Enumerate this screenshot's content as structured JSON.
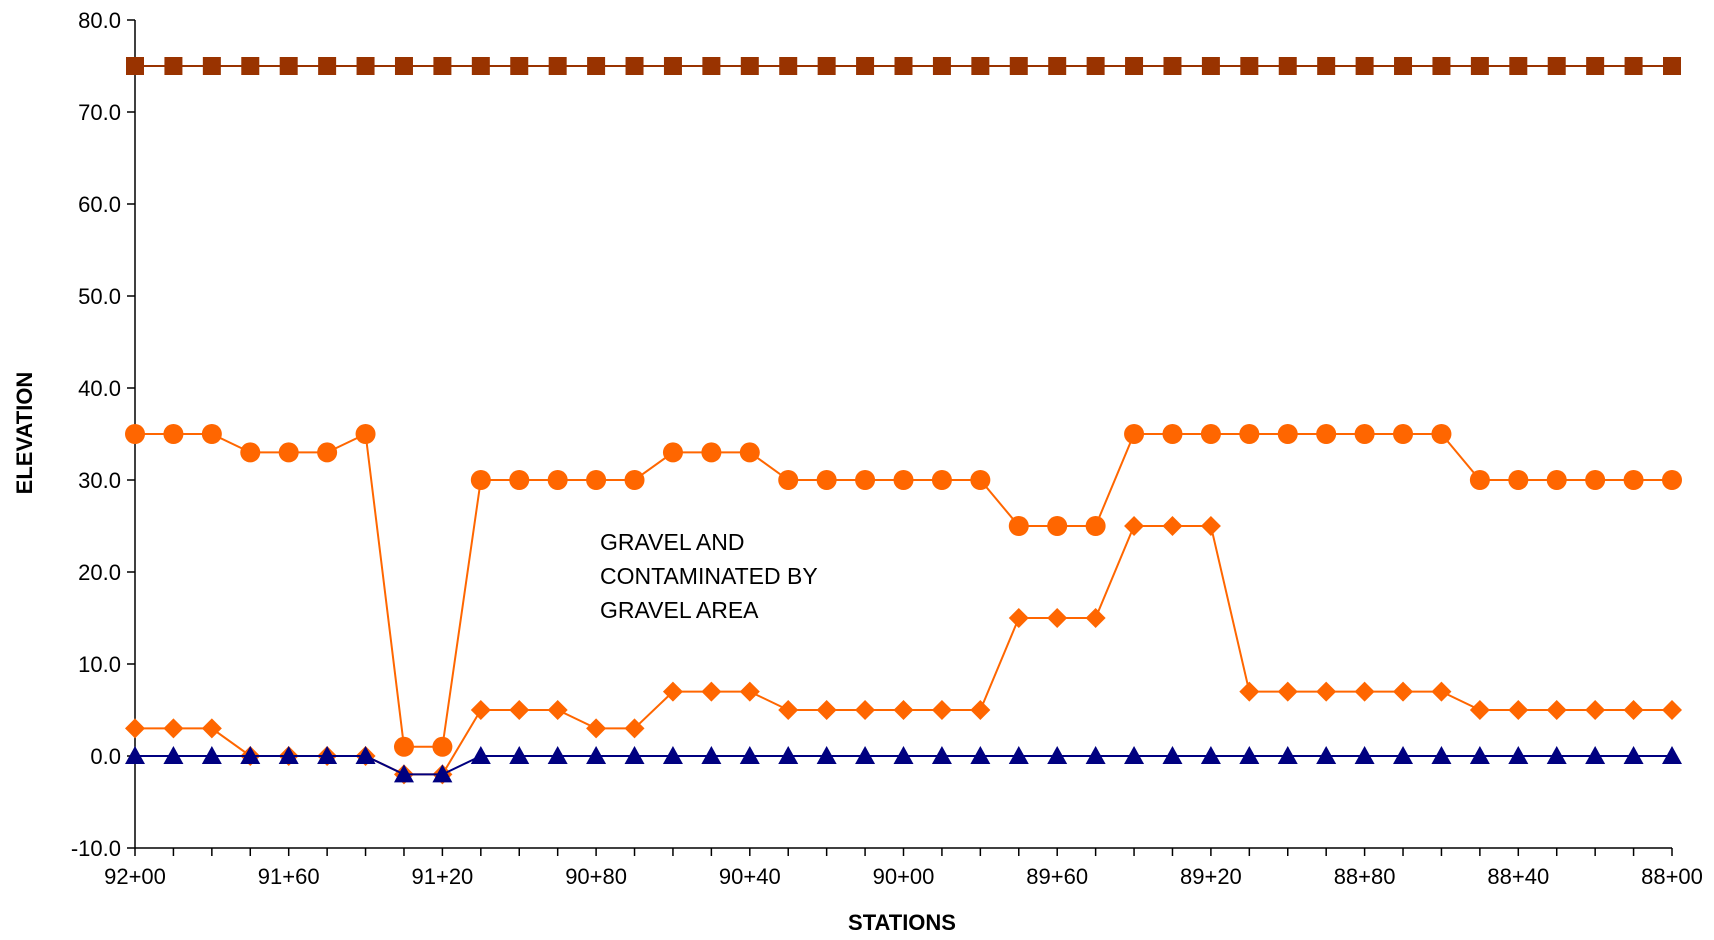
{
  "chart_data": {
    "type": "line",
    "title": "",
    "xlabel": "STATIONS",
    "ylabel": "ELEVATION",
    "ylim": [
      -10,
      80
    ],
    "yticks": [
      "80.0",
      "70.0",
      "60.0",
      "50.0",
      "40.0",
      "30.0",
      "20.0",
      "10.0",
      "0.0",
      "-10.0"
    ],
    "x_tick_labels": [
      "92+00",
      "91+60",
      "91+20",
      "90+80",
      "90+40",
      "90+00",
      "89+60",
      "89+20",
      "88+80",
      "88+40",
      "88+00"
    ],
    "x": [
      "92+00",
      "91+90",
      "91+80",
      "91+70",
      "91+60",
      "91+50",
      "91+40",
      "91+30",
      "91+20",
      "91+10",
      "91+00",
      "90+90",
      "90+80",
      "90+70",
      "90+60",
      "90+50",
      "90+40",
      "90+30",
      "90+20",
      "90+10",
      "90+00",
      "89+90",
      "89+80",
      "89+70",
      "89+60",
      "89+50",
      "89+40",
      "89+30",
      "89+20",
      "89+10",
      "89+00",
      "88+90",
      "88+80",
      "88+70",
      "88+60",
      "88+50",
      "88+40",
      "88+30",
      "88+20",
      "88+10",
      "88+00"
    ],
    "grid": false,
    "legend": "none",
    "annotation": [
      "GRAVEL AND",
      "CONTAMINATED BY",
      "GRAVEL AREA"
    ],
    "series": [
      {
        "marker": "square",
        "color": "#993300",
        "values": [
          75,
          75,
          75,
          75,
          75,
          75,
          75,
          75,
          75,
          75,
          75,
          75,
          75,
          75,
          75,
          75,
          75,
          75,
          75,
          75,
          75,
          75,
          75,
          75,
          75,
          75,
          75,
          75,
          75,
          75,
          75,
          75,
          75,
          75,
          75,
          75,
          75,
          75,
          75,
          75,
          75
        ]
      },
      {
        "marker": "circle",
        "color": "#FF6600",
        "values": [
          35,
          35,
          35,
          33,
          33,
          33,
          35,
          1,
          1,
          30,
          30,
          30,
          30,
          30,
          33,
          33,
          33,
          30,
          30,
          30,
          30,
          30,
          30,
          25,
          25,
          25,
          35,
          35,
          35,
          35,
          35,
          35,
          35,
          35,
          35,
          30,
          30,
          30,
          30,
          30,
          30
        ]
      },
      {
        "marker": "diamond",
        "color": "#FF6600",
        "values": [
          3,
          3,
          3,
          0,
          0,
          0,
          0,
          -2,
          -2,
          5,
          5,
          5,
          3,
          3,
          7,
          7,
          7,
          5,
          5,
          5,
          5,
          5,
          5,
          15,
          15,
          15,
          25,
          25,
          25,
          7,
          7,
          7,
          7,
          7,
          7,
          5,
          5,
          5,
          5,
          5,
          5
        ]
      },
      {
        "marker": "triangle",
        "color": "#000080",
        "values": [
          0,
          0,
          0,
          0,
          0,
          0,
          0,
          -2,
          -2,
          0,
          0,
          0,
          0,
          0,
          0,
          0,
          0,
          0,
          0,
          0,
          0,
          0,
          0,
          0,
          0,
          0,
          0,
          0,
          0,
          0,
          0,
          0,
          0,
          0,
          0,
          0,
          0,
          0,
          0,
          0,
          0
        ]
      }
    ]
  }
}
